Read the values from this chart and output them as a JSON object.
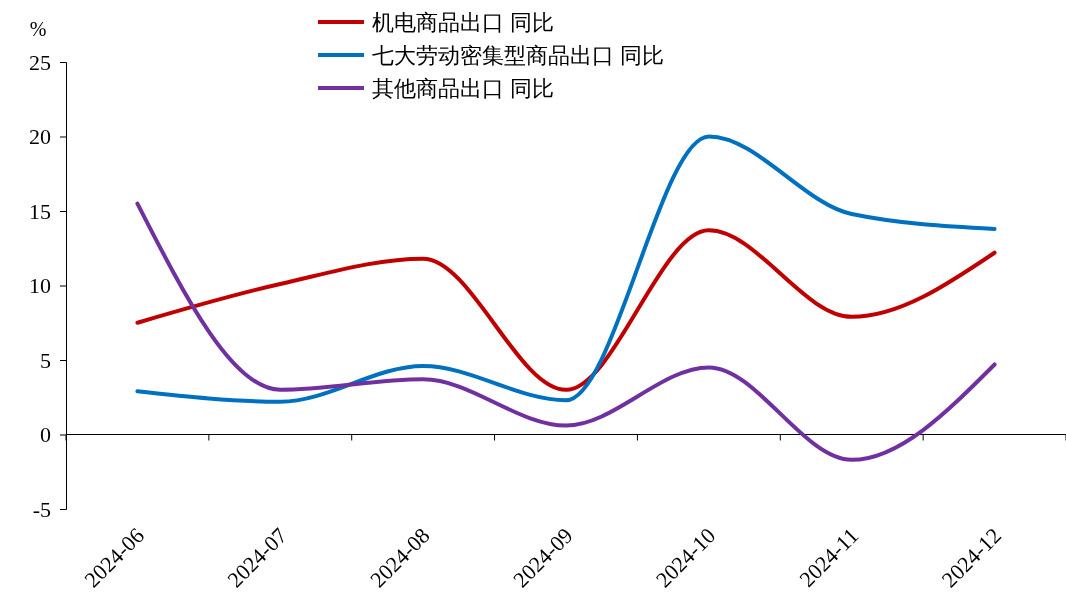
{
  "chart_data": {
    "type": "line",
    "ylabel": "%",
    "categories": [
      "2024-06",
      "2024-07",
      "2024-08",
      "2024-09",
      "2024-10",
      "2024-11",
      "2024-12"
    ],
    "series": [
      {
        "name": "机电商品出口 同比",
        "color": "#c00000",
        "values": [
          7.5,
          10.1,
          11.8,
          3.0,
          13.7,
          7.9,
          12.2
        ]
      },
      {
        "name": "七大劳动密集型商品出口 同比",
        "color": "#0070c0",
        "values": [
          2.9,
          2.2,
          4.6,
          2.3,
          20.0,
          14.8,
          13.8
        ]
      },
      {
        "name": "其他商品出口 同比",
        "color": "#7030a0",
        "values": [
          15.5,
          3.0,
          3.7,
          0.6,
          4.5,
          -1.7,
          4.7
        ]
      }
    ],
    "ylim": [
      -5,
      25
    ],
    "yticks": [
      -5,
      0,
      5,
      10,
      15,
      20,
      25
    ],
    "legend": "top",
    "marker": "none",
    "line_style": "solid"
  }
}
